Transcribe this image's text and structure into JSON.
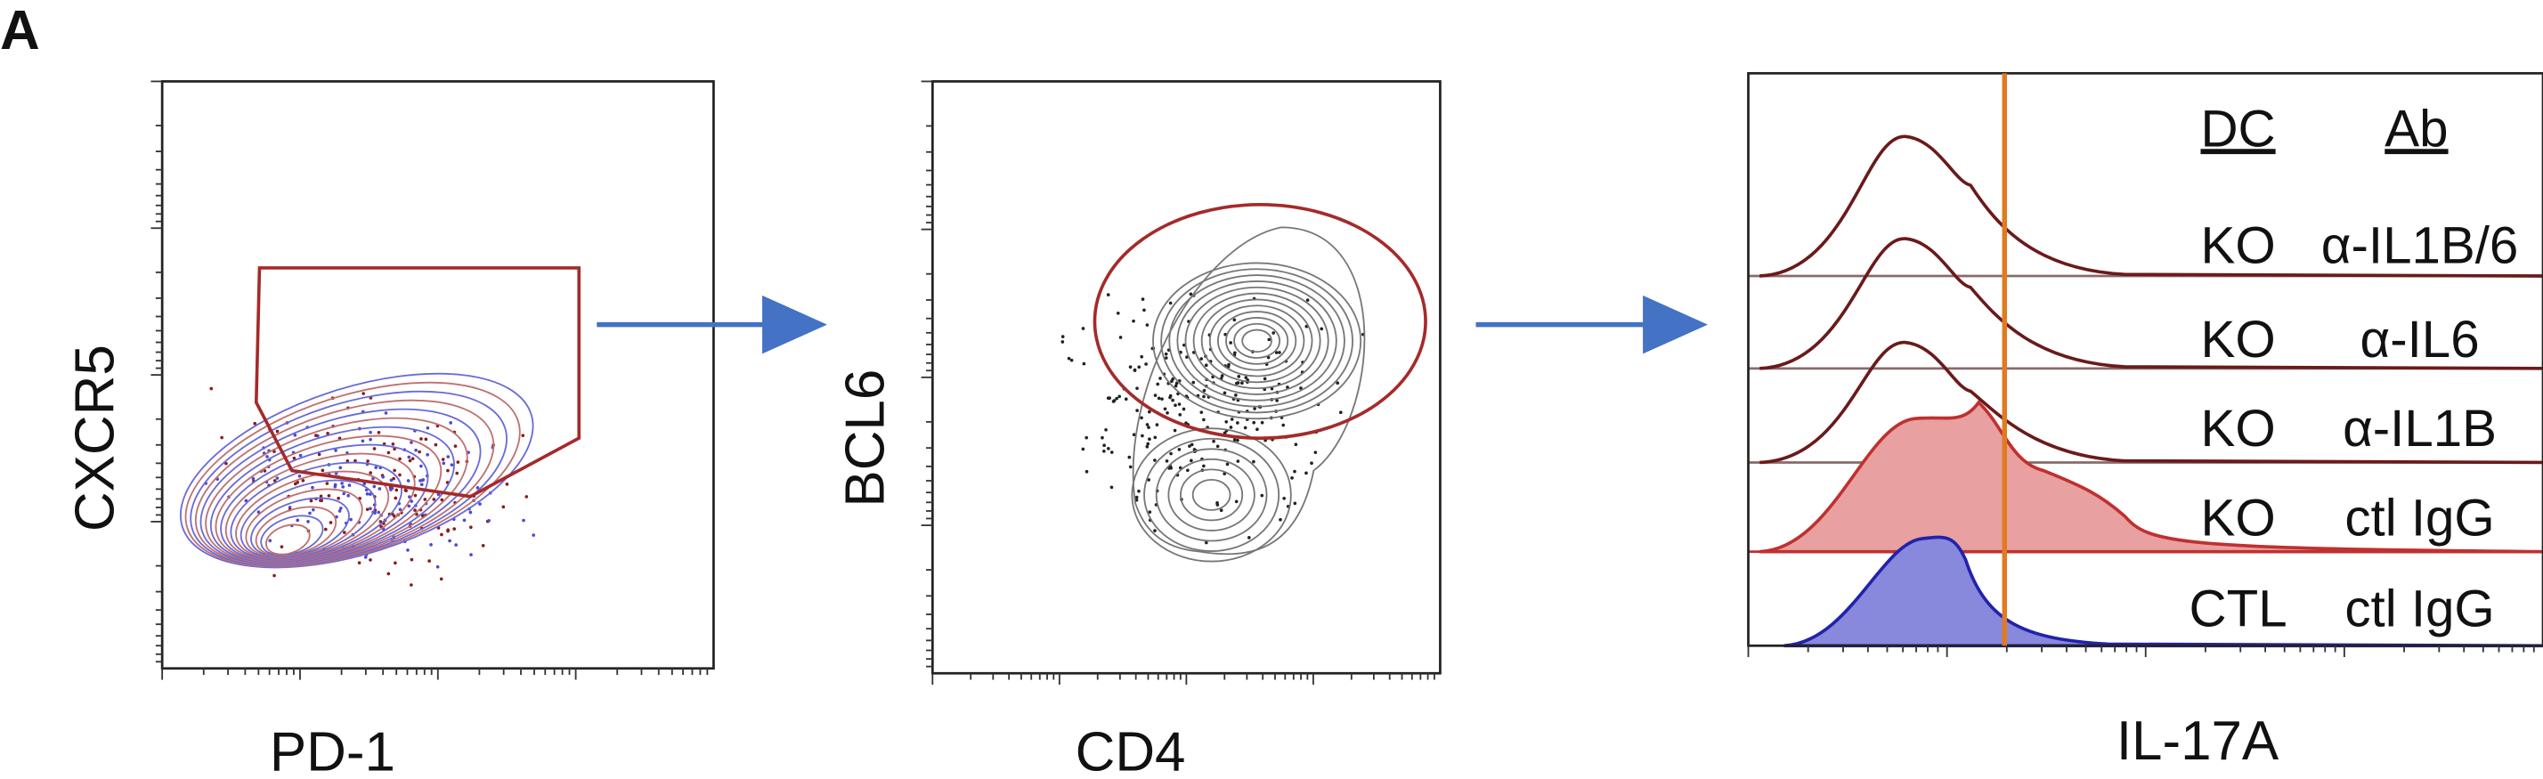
{
  "panel_label": "A",
  "plots": [
    {
      "x_label": "PD-1",
      "y_label": "CXCR5"
    },
    {
      "x_label": "CD4",
      "y_label": "BCL6"
    },
    {
      "x_label": "IL-17A",
      "legend": {
        "headers": [
          "DC",
          "Ab"
        ],
        "rows": [
          [
            "KO",
            "α-IL1B/6"
          ],
          [
            "KO",
            "α-IL6"
          ],
          [
            "KO",
            "α-IL1B"
          ],
          [
            "KO",
            "ctl IgG"
          ],
          [
            "CTL",
            "ctl IgG"
          ]
        ]
      }
    }
  ]
}
